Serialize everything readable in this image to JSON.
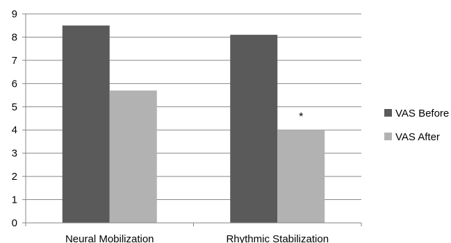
{
  "chart_data": {
    "type": "bar",
    "categories": [
      "Neural Mobilization",
      "Rhythmic Stabilization"
    ],
    "series": [
      {
        "name": "VAS Before",
        "values": [
          8.5,
          8.1
        ],
        "color": "#5a5a5a"
      },
      {
        "name": "VAS After",
        "values": [
          5.7,
          4.0
        ],
        "color": "#b2b2b2"
      }
    ],
    "ylim": [
      0,
      9
    ],
    "yticks": [
      "0",
      "1",
      "2",
      "3",
      "4",
      "5",
      "6",
      "7",
      "8",
      "9"
    ],
    "grid": true,
    "legend": "right",
    "annotations": [
      {
        "text": "*",
        "category": "Rhythmic Stabilization",
        "series": "VAS After"
      }
    ]
  }
}
